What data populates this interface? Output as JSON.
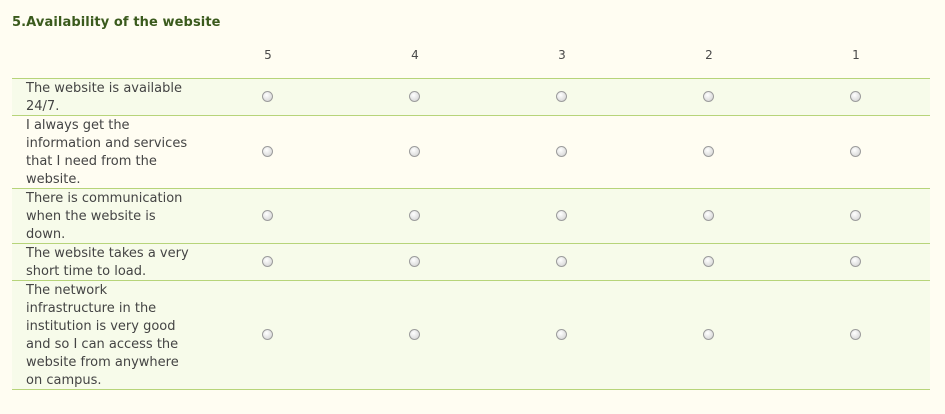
{
  "question": {
    "title": "5.Availability of the website"
  },
  "scale": [
    "5",
    "4",
    "3",
    "2",
    "1"
  ],
  "rows": [
    {
      "label": "The website is available 24/7."
    },
    {
      "label": "I always get the information and services that I need from the website."
    },
    {
      "label": "There is communication when the website is down."
    },
    {
      "label": "The website takes a very short time to load."
    },
    {
      "label": "The network infrastructure in the institution is very good and so I can access the website from anywhere on campus."
    }
  ]
}
